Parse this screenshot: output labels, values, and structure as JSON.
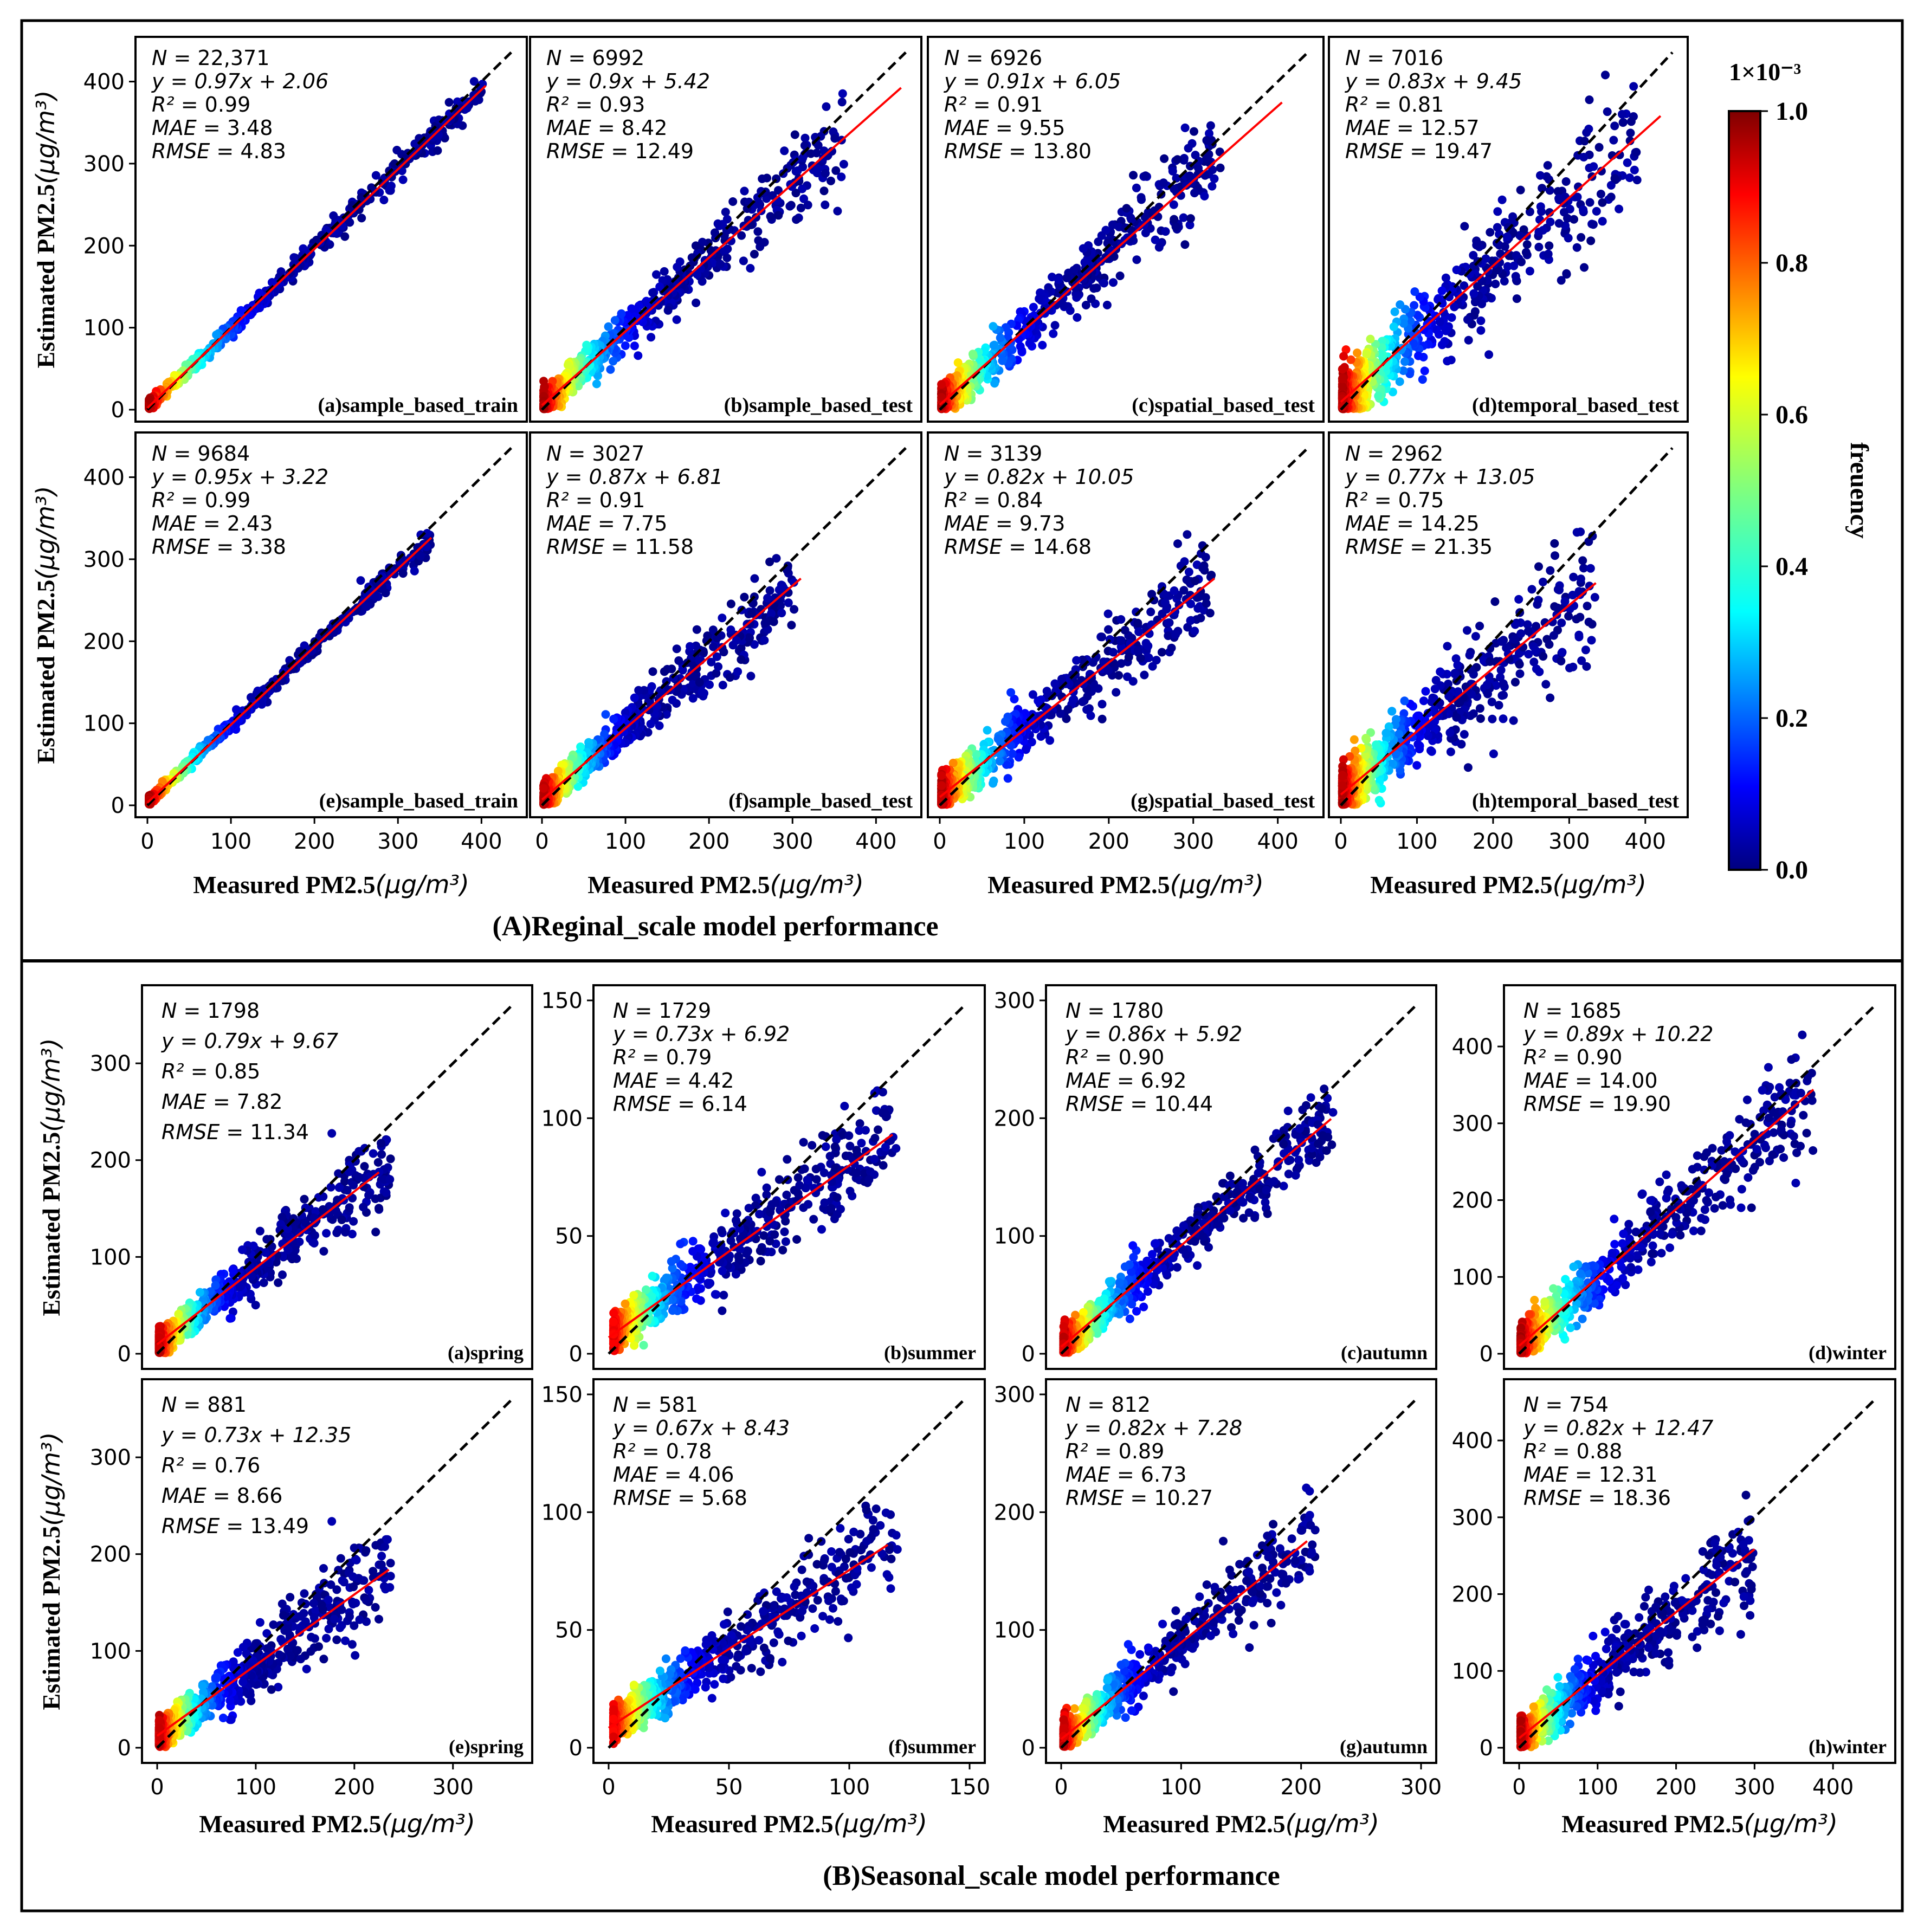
{
  "figure": {
    "section_a_title": "(A)Reginal_scale model performance",
    "section_b_title": "(B)Seasonal_scale model performance",
    "ylabel_prefix": "Estimated PM2.5",
    "xlabel_prefix": "Measured PM2.5",
    "unit_label": "(μg/m³)",
    "colorbar": {
      "multiplier_label": "1×10⁻³",
      "label": "freuency",
      "ticks": [
        "0.0",
        "0.2",
        "0.4",
        "0.6",
        "0.8",
        "1.0"
      ],
      "colormap": "jet",
      "colors": [
        "#00007f",
        "#0000ff",
        "#007fff",
        "#00ffff",
        "#7fff7f",
        "#ffff00",
        "#ff7f00",
        "#ff0000",
        "#7f0000"
      ]
    },
    "colors": {
      "fit_line": "#ff0000",
      "identity_line": "#000000",
      "points_low": "#00007f",
      "points_high": "#7f0000"
    }
  },
  "chart_data": [
    {
      "type": "scatter",
      "panel": "(a)sample_based_train",
      "section": "A",
      "N": "22,371",
      "eq": "y = 0.97x + 2.06",
      "r2": "0.99",
      "mae": "3.48",
      "rmse": "4.83",
      "slope": 0.97,
      "intercept": 2.06,
      "xlim": [
        0,
        440
      ],
      "ylim": [
        0,
        440
      ],
      "ticks": [
        0,
        100,
        200,
        300,
        400
      ],
      "xmax_data": 400,
      "spread": 5,
      "fit_end": 405
    },
    {
      "type": "scatter",
      "panel": "(b)sample_based_test",
      "section": "A",
      "N": "6992",
      "eq": "y = 0.9x + 5.42",
      "r2": "0.93",
      "mae": "8.42",
      "rmse": "12.49",
      "slope": 0.9,
      "intercept": 5.42,
      "xlim": [
        0,
        440
      ],
      "ylim": [
        0,
        440
      ],
      "ticks": [
        0,
        100,
        200,
        300,
        400
      ],
      "xmax_data": 360,
      "spread": 14,
      "fit_end": 430
    },
    {
      "type": "scatter",
      "panel": "(c)spatial_based_test",
      "section": "A",
      "N": "6926",
      "eq": "y = 0.91x + 6.05",
      "r2": "0.91",
      "mae": "9.55",
      "rmse": "13.80",
      "slope": 0.91,
      "intercept": 6.05,
      "xlim": [
        0,
        440
      ],
      "ylim": [
        0,
        440
      ],
      "ticks": [
        0,
        100,
        200,
        300,
        400
      ],
      "xmax_data": 330,
      "spread": 16,
      "fit_end": 405
    },
    {
      "type": "scatter",
      "panel": "(d)temporal_based_test",
      "section": "A",
      "N": "7016",
      "eq": "y = 0.83x + 9.45",
      "r2": "0.81",
      "mae": "12.57",
      "rmse": "19.47",
      "slope": 0.83,
      "intercept": 9.45,
      "xlim": [
        0,
        440
      ],
      "ylim": [
        0,
        440
      ],
      "ticks": [
        0,
        100,
        200,
        300,
        400
      ],
      "xmax_data": 390,
      "spread": 26,
      "fit_end": 420
    },
    {
      "type": "scatter",
      "panel": "(e)sample_based_train",
      "section": "A",
      "N": "9684",
      "eq": "y = 0.95x + 3.22",
      "r2": "0.99",
      "mae": "2.43",
      "rmse": "3.38",
      "slope": 0.95,
      "intercept": 3.22,
      "xlim": [
        0,
        440
      ],
      "ylim": [
        0,
        440
      ],
      "ticks": [
        0,
        100,
        200,
        300,
        400
      ],
      "xmax_data": 340,
      "spread": 4,
      "fit_end": 340
    },
    {
      "type": "scatter",
      "panel": "(f)sample_based_test",
      "section": "A",
      "N": "3027",
      "eq": "y = 0.87x + 6.81",
      "r2": "0.91",
      "mae": "7.75",
      "rmse": "11.58",
      "slope": 0.87,
      "intercept": 6.81,
      "xlim": [
        0,
        440
      ],
      "ylim": [
        0,
        440
      ],
      "ticks": [
        0,
        100,
        200,
        300,
        400
      ],
      "xmax_data": 300,
      "spread": 13,
      "fit_end": 310
    },
    {
      "type": "scatter",
      "panel": "(g)spatial_based_test",
      "section": "A",
      "N": "3139",
      "eq": "y = 0.82x + 10.05",
      "r2": "0.84",
      "mae": "9.73",
      "rmse": "14.68",
      "slope": 0.82,
      "intercept": 10.05,
      "xlim": [
        0,
        440
      ],
      "ylim": [
        0,
        440
      ],
      "ticks": [
        0,
        100,
        200,
        300,
        400
      ],
      "xmax_data": 320,
      "spread": 17,
      "fit_end": 325
    },
    {
      "type": "scatter",
      "panel": "(h)temporal_based_test",
      "section": "A",
      "N": "2962",
      "eq": "y = 0.77x + 13.05",
      "r2": "0.75",
      "mae": "14.25",
      "rmse": "21.35",
      "slope": 0.77,
      "intercept": 13.05,
      "xlim": [
        0,
        440
      ],
      "ylim": [
        0,
        440
      ],
      "ticks": [
        0,
        100,
        200,
        300,
        400
      ],
      "xmax_data": 335,
      "spread": 24,
      "fit_end": 335
    },
    {
      "type": "scatter",
      "panel": "(a)spring",
      "section": "B",
      "N": "1798",
      "eq": "y = 0.79x + 9.67",
      "r2": "0.85",
      "mae": "7.82",
      "rmse": "11.34",
      "slope": 0.79,
      "intercept": 9.67,
      "xlim": [
        0,
        365
      ],
      "ylim": [
        0,
        365
      ],
      "ticks": [
        0,
        100,
        200,
        300
      ],
      "xmax_data": 235,
      "spread": 11,
      "fit_end": 225
    },
    {
      "type": "scatter",
      "panel": "(b)summer",
      "section": "B",
      "N": "1729",
      "eq": "y = 0.73x + 6.92",
      "r2": "0.79",
      "mae": "4.42",
      "rmse": "6.14",
      "slope": 0.73,
      "intercept": 6.92,
      "xlim": [
        0,
        150
      ],
      "ylim": [
        0,
        150
      ],
      "ticks": [
        0,
        50,
        100,
        150
      ],
      "xmax_data": 118,
      "spread": 6,
      "fit_end": 118
    },
    {
      "type": "scatter",
      "panel": "(c)autumn",
      "section": "B",
      "N": "1780",
      "eq": "y = 0.86x + 5.92",
      "r2": "0.90",
      "mae": "6.92",
      "rmse": "10.44",
      "slope": 0.86,
      "intercept": 5.92,
      "xlim": [
        0,
        300
      ],
      "ylim": [
        0,
        300
      ],
      "ticks": [
        0,
        100,
        200,
        300
      ],
      "xmax_data": 225,
      "spread": 10,
      "fit_end": 225
    },
    {
      "type": "scatter",
      "panel": "(d)winter",
      "section": "B",
      "N": "1685",
      "eq": "y = 0.89x + 10.22",
      "r2": "0.90",
      "mae": "14.00",
      "rmse": "19.90",
      "slope": 0.89,
      "intercept": 10.22,
      "xlim": [
        0,
        460
      ],
      "ylim": [
        0,
        460
      ],
      "ticks": [
        0,
        100,
        200,
        300,
        400
      ],
      "xmax_data": 375,
      "spread": 19,
      "fit_end": 375
    },
    {
      "type": "scatter",
      "panel": "(e)spring",
      "section": "B",
      "N": "881",
      "eq": "y = 0.73x + 12.35",
      "r2": "0.76",
      "mae": "8.66",
      "rmse": "13.49",
      "slope": 0.73,
      "intercept": 12.35,
      "xlim": [
        0,
        365
      ],
      "ylim": [
        0,
        365
      ],
      "ticks": [
        0,
        100,
        200,
        300
      ],
      "xmax_data": 235,
      "spread": 13,
      "fit_end": 235
    },
    {
      "type": "scatter",
      "panel": "(f)summer",
      "section": "B",
      "N": "581",
      "eq": "y = 0.67x + 8.43",
      "r2": "0.78",
      "mae": "4.06",
      "rmse": "5.68",
      "slope": 0.67,
      "intercept": 8.43,
      "xlim": [
        0,
        150
      ],
      "ylim": [
        0,
        150
      ],
      "ticks": [
        0,
        50,
        100,
        150
      ],
      "xmax_data": 118,
      "spread": 5.5,
      "fit_end": 116
    },
    {
      "type": "scatter",
      "panel": "(g)autumn",
      "section": "B",
      "N": "812",
      "eq": "y = 0.82x + 7.28",
      "r2": "0.89",
      "mae": "6.73",
      "rmse": "10.27",
      "slope": 0.82,
      "intercept": 7.28,
      "xlim": [
        0,
        300
      ],
      "ylim": [
        0,
        300
      ],
      "ticks": [
        0,
        100,
        200,
        300
      ],
      "xmax_data": 210,
      "spread": 10,
      "fit_end": 205
    },
    {
      "type": "scatter",
      "panel": "(h)winter",
      "section": "B",
      "N": "754",
      "eq": "y = 0.82x + 12.47",
      "r2": "0.88",
      "mae": "12.31",
      "rmse": "18.36",
      "slope": 0.82,
      "intercept": 12.47,
      "xlim": [
        0,
        460
      ],
      "ylim": [
        0,
        460
      ],
      "ticks": [
        0,
        100,
        200,
        300,
        400
      ],
      "xmax_data": 300,
      "spread": 18,
      "fit_end": 300
    }
  ]
}
